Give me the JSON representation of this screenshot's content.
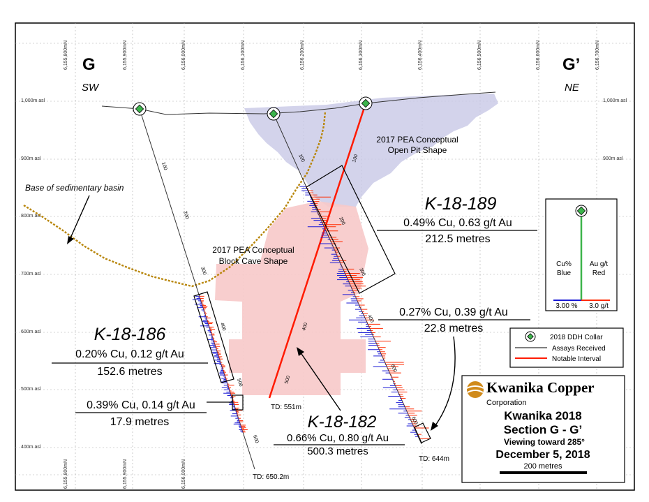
{
  "section": {
    "left_letter": "G",
    "right_letter": "G’",
    "left_dir": "SW",
    "right_dir": "NE",
    "northings": [
      "6,155,800mN",
      "6,155,900mN",
      "6,156,000mN",
      "6,156,100mN",
      "6,156,200mN",
      "6,156,300mN",
      "6,156,400mN",
      "6,156,500mN",
      "6,156,600mN",
      "6,156,700mN"
    ],
    "elevations": [
      "1,000m asl",
      "900m asl",
      "800m asl",
      "700m asl",
      "600m asl",
      "500m asl",
      "400m asl"
    ]
  },
  "labels": {
    "open_pit": [
      "2017 PEA Conceptual",
      "Open Pit Shape"
    ],
    "block_cave": [
      "2017 PEA Conceptual",
      "Block Cave Shape"
    ],
    "basin": "Base of sedimentary basin"
  },
  "holes": {
    "h189": {
      "name": "K-18-189",
      "grade": "0.49% Cu, 0.63 g/t Au",
      "length": "212.5 metres"
    },
    "h186": {
      "name": "K-18-186",
      "grade": "0.20% Cu, 0.12 g/t Au",
      "length": "152.6 metres"
    },
    "h186b": {
      "grade": "0.39% Cu, 0.14 g/t Au",
      "length": "17.9 metres"
    },
    "h182": {
      "name": "K-18-182",
      "grade": "0.66% Cu, 0.80 g/t Au",
      "length": "500.3 metres"
    },
    "h189b": {
      "grade": "0.27% Cu, 0.39 g/t Au",
      "length": "22.8 metres"
    }
  },
  "depth_ticks": {
    "h186": [
      "100",
      "200",
      "300",
      "400",
      "500",
      "600"
    ],
    "h182": [
      "100",
      "400",
      "500"
    ],
    "h189": [
      "100",
      "200",
      "300",
      "400",
      "500",
      "600"
    ]
  },
  "td": {
    "h186": "TD: 650.2m",
    "h182": "TD: 551m",
    "h189": "TD: 644m"
  },
  "scale_legend": {
    "cu": "Cu%",
    "cu_color": "Blue",
    "au": "Au g/t",
    "au_color": "Red",
    "cu_max": "3.00 %",
    "au_max": "3.0 g/t"
  },
  "legend": {
    "collar": "2018 DDH Collar",
    "assays": "Assays Received",
    "notable": "Notable Interval"
  },
  "title_block": {
    "company": "Kwanika Copper",
    "corporation": "Corporation",
    "title": "Kwanika 2018",
    "section": "Section G - G’",
    "viewing": "Viewing toward 285°",
    "date": "December 5, 2018",
    "scale": "200 metres"
  },
  "colors": {
    "cu": "#1a1ad6",
    "au": "#ff2a00",
    "notable": "#ff1a00",
    "pit": "#c8c8e6",
    "cave": "#f7c9c9",
    "basin": "#b8860b"
  }
}
